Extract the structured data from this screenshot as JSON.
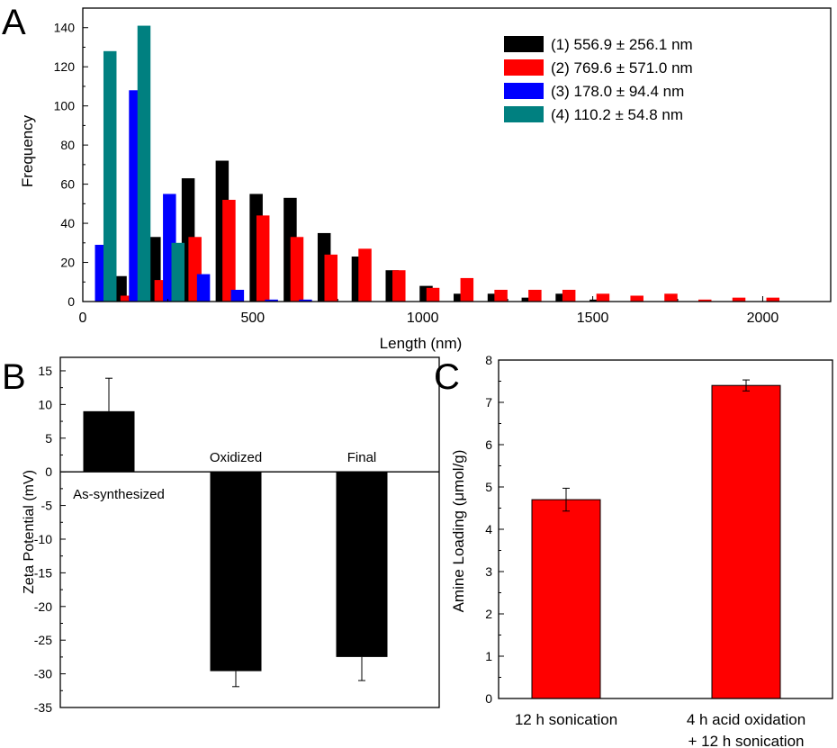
{
  "chart_data": [
    {
      "type": "bar",
      "panel_label": "A",
      "xlabel": "Length (nm)",
      "ylabel": "Frequency",
      "xlim": [
        0,
        2200
      ],
      "ylim": [
        0,
        150
      ],
      "x_ticks": [
        0,
        500,
        1000,
        1500,
        2000
      ],
      "y_ticks": [
        0,
        20,
        40,
        60,
        80,
        100,
        120,
        140
      ],
      "legend_position": "top-right",
      "series": [
        {
          "name": "(1) 556.9 ± 256.1 nm",
          "color": "#000000",
          "x": [
            110,
            210,
            310,
            410,
            510,
            610,
            710,
            810,
            910,
            1010,
            1110,
            1210,
            1310,
            1410,
            1510,
            1610,
            1710,
            1810,
            1910,
            2010
          ],
          "values": [
            13,
            33,
            63,
            72,
            55,
            53,
            35,
            23,
            16,
            8,
            4,
            4,
            2,
            4,
            1,
            0,
            0,
            0,
            0,
            0
          ]
        },
        {
          "name": "(2) 769.6 ± 571.0 nm",
          "color": "#ff0000",
          "x": [
            130,
            230,
            330,
            430,
            530,
            630,
            730,
            830,
            930,
            1030,
            1130,
            1230,
            1330,
            1430,
            1530,
            1630,
            1730,
            1830,
            1930,
            2030
          ],
          "values": [
            3,
            11,
            33,
            52,
            44,
            33,
            24,
            27,
            16,
            7,
            12,
            6,
            6,
            6,
            4,
            3,
            4,
            1,
            2,
            2
          ]
        },
        {
          "name": "(3) 178.0 ± 94.4 nm",
          "color": "#0000ff",
          "x": [
            55,
            155,
            255,
            355,
            455,
            555,
            655
          ],
          "values": [
            29,
            108,
            55,
            14,
            6,
            1,
            1
          ]
        },
        {
          "name": "(4) 110.2 ± 54.8 nm",
          "color": "#008080",
          "x": [
            80,
            180,
            280
          ],
          "values": [
            128,
            141,
            30
          ]
        }
      ]
    },
    {
      "type": "bar",
      "panel_label": "B",
      "xlabel": "",
      "ylabel": "Zeta Potential (mV)",
      "ylim": [
        -35,
        17
      ],
      "y_ticks": [
        -35,
        -30,
        -25,
        -20,
        -15,
        -10,
        -5,
        0,
        5,
        10,
        15
      ],
      "categories": [
        "As-synthesized",
        "Oxidized",
        "Final"
      ],
      "values": [
        9,
        -29.6,
        -27.5
      ],
      "errors": [
        4.9,
        2.3,
        3.5
      ],
      "bar_color": "#000000"
    },
    {
      "type": "bar",
      "panel_label": "C",
      "xlabel": "",
      "ylabel": "Amine Loading (μmol/g)",
      "ylim": [
        0,
        8
      ],
      "y_ticks": [
        0,
        1,
        2,
        3,
        4,
        5,
        6,
        7,
        8
      ],
      "categories": [
        {
          "line1": "12 h sonication",
          "line2": ""
        },
        {
          "line1": "4 h acid oxidation",
          "line2": "+ 12 h sonication"
        }
      ],
      "values": [
        4.7,
        7.4
      ],
      "errors": [
        0.27,
        0.13
      ],
      "bar_color": "#ff0000"
    }
  ]
}
